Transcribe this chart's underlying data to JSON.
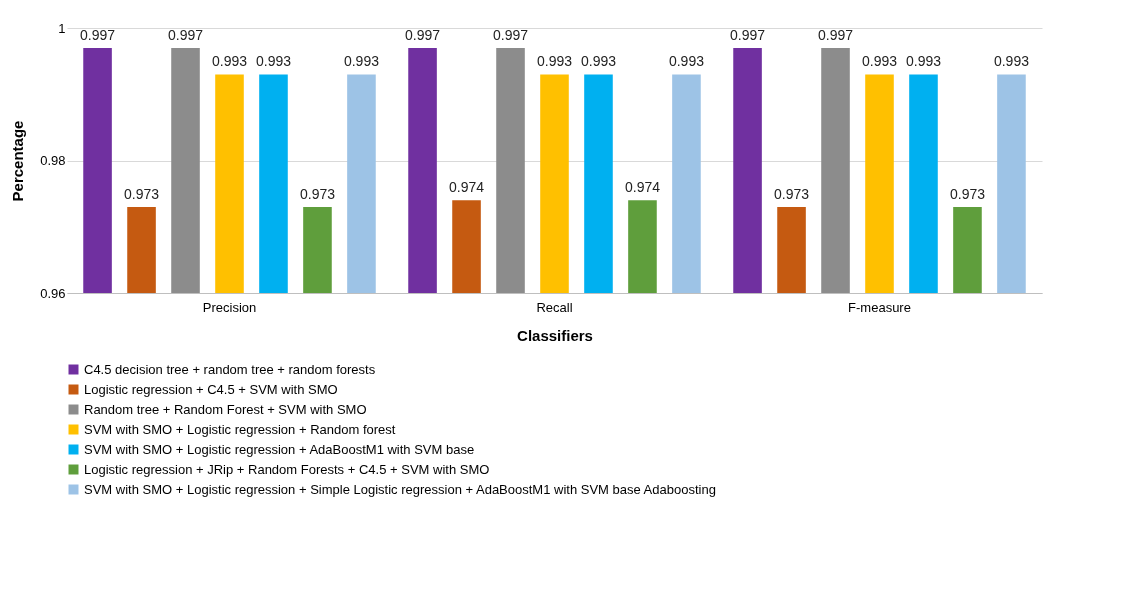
{
  "chart_data": {
    "type": "bar",
    "xlabel": "Classifiers",
    "ylabel": "Percentage",
    "categories": [
      "Precision",
      "Recall",
      "F-measure"
    ],
    "series": [
      {
        "name": "C4.5 decision tree + random tree + random forests",
        "color": "#7030a0",
        "values": [
          0.997,
          0.997,
          0.997
        ]
      },
      {
        "name": "Logistic regression + C4.5 + SVM with SMO",
        "color": "#c55a11",
        "values": [
          0.973,
          0.974,
          0.973
        ]
      },
      {
        "name": "Random tree + Random Forest + SVM with SMO",
        "color": "#8c8c8c",
        "values": [
          0.997,
          0.997,
          0.997
        ]
      },
      {
        "name": "SVM with SMO + Logistic regression + Random forest",
        "color": "#ffc000",
        "values": [
          0.993,
          0.993,
          0.993
        ]
      },
      {
        "name": "SVM with SMO + Logistic regression + AdaBoostM1 with SVM base",
        "color": "#00b0f0",
        "values": [
          0.993,
          0.993,
          0.993
        ]
      },
      {
        "name": "Logistic regression + JRip + Random Forests + C4.5 + SVM with SMO",
        "color": "#5f9e3c",
        "values": [
          0.973,
          0.974,
          0.973
        ]
      },
      {
        "name": "SVM with SMO + Logistic regression + Simple Logistic regression + AdaBoostM1 with SVM base Adaboosting",
        "color": "#9dc3e6",
        "values": [
          0.993,
          0.993,
          0.993
        ]
      }
    ],
    "ylim": [
      0.96,
      1
    ],
    "yticks": [
      0.96,
      0.98,
      1
    ],
    "grid": "y",
    "legend": "bottom",
    "data_labels": true
  }
}
